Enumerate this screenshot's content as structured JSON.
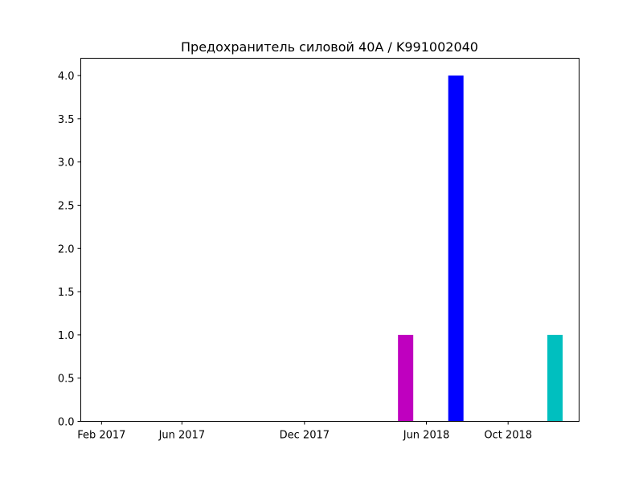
{
  "chart_data": {
    "type": "bar",
    "title": "Предохранитель силовой 40А / K991002040",
    "xlabel": "",
    "ylabel": "",
    "x_axis": {
      "type": "date",
      "range": [
        "2017-01-01",
        "2019-01-15"
      ],
      "ticks": [
        {
          "date": "2017-02-01",
          "label": "Feb 2017"
        },
        {
          "date": "2017-06-01",
          "label": "Jun 2017"
        },
        {
          "date": "2017-12-01",
          "label": "Dec 2017"
        },
        {
          "date": "2018-06-01",
          "label": "Jun 2018"
        },
        {
          "date": "2018-10-01",
          "label": "Oct 2018"
        }
      ]
    },
    "ylim": [
      0,
      4.2
    ],
    "y_ticks": [
      {
        "value": 0.0,
        "label": "0.0"
      },
      {
        "value": 0.5,
        "label": "0.5"
      },
      {
        "value": 1.0,
        "label": "1.0"
      },
      {
        "value": 1.5,
        "label": "1.5"
      },
      {
        "value": 2.0,
        "label": "2.0"
      },
      {
        "value": 2.5,
        "label": "2.5"
      },
      {
        "value": 3.0,
        "label": "3.0"
      },
      {
        "value": 3.5,
        "label": "3.5"
      },
      {
        "value": 4.0,
        "label": "4.0"
      }
    ],
    "grid": false,
    "bars": [
      {
        "date": "2018-05-01",
        "value": 1,
        "color": "#bf00bf"
      },
      {
        "date": "2018-07-15",
        "value": 4,
        "color": "#0000ff"
      },
      {
        "date": "2018-12-10",
        "value": 1,
        "color": "#00bfbf"
      }
    ]
  }
}
